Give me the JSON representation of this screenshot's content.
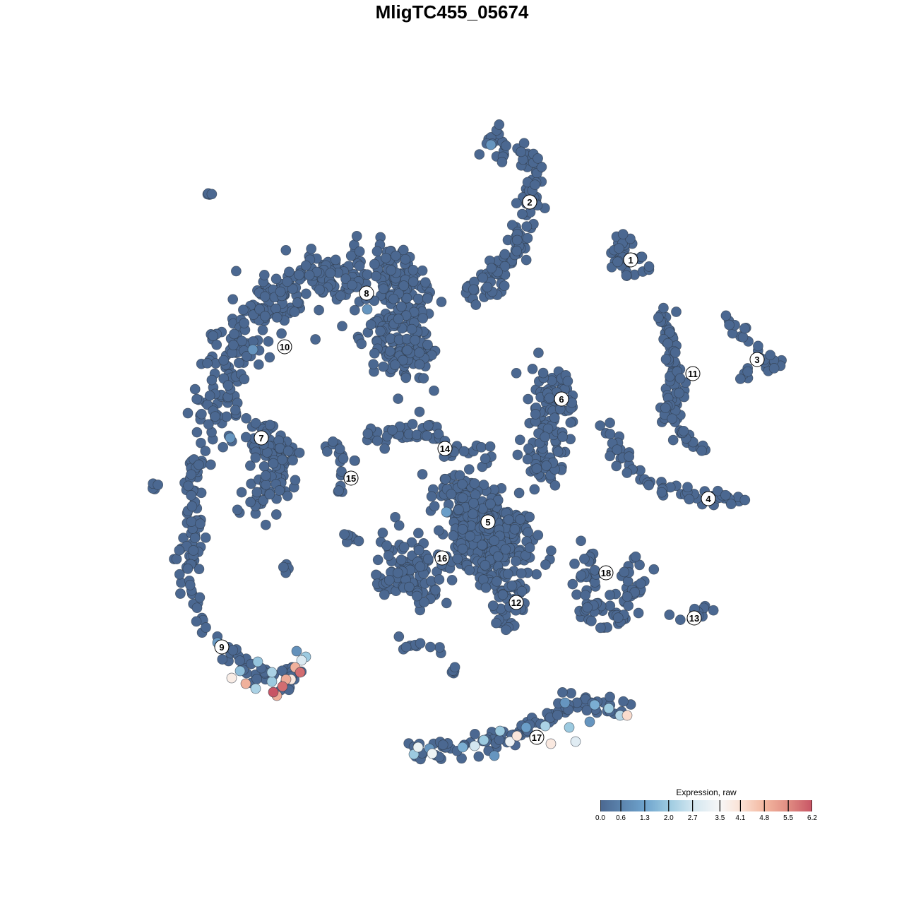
{
  "chart_data": {
    "type": "scatter",
    "title": "MligTC455_05674",
    "xlabel": "",
    "ylabel": "",
    "xlim": [
      -64,
      64
    ],
    "ylim": [
      -64,
      64
    ],
    "axes_visible": false,
    "grid": false,
    "legend": {
      "title": "Expression, raw",
      "placement": "bottom-right",
      "type": "colorbar",
      "ticks": [
        "0.0",
        "0.6",
        "1.3",
        "2.0",
        "2.7",
        "3.5",
        "4.1",
        "4.8",
        "5.5",
        "6.2"
      ],
      "range": [
        0,
        6.2
      ],
      "colors": [
        {
          "value": 0.0,
          "color": "#4b6891"
        },
        {
          "value": 1.3,
          "color": "#6ea3cd"
        },
        {
          "value": 2.0,
          "color": "#9ccae0"
        },
        {
          "value": 2.7,
          "color": "#d2e6f0"
        },
        {
          "value": 3.5,
          "color": "#f7f7f7"
        },
        {
          "value": 4.1,
          "color": "#fbe2d5"
        },
        {
          "value": 4.8,
          "color": "#f3b7a0"
        },
        {
          "value": 5.5,
          "color": "#e08c82"
        },
        {
          "value": 6.2,
          "color": "#c85565"
        }
      ]
    },
    "clusters": [
      {
        "label": "1",
        "label_pos": [
          25.3,
          27.2
        ],
        "path": [
          [
            23.5,
            30.5
          ],
          [
            24.5,
            27
          ],
          [
            27,
            26.5
          ]
        ],
        "spread": 1.8,
        "n": 40
      },
      {
        "label": "2",
        "label_pos": [
          11,
          35.4
        ],
        "path": [
          [
            5,
            44.5
          ],
          [
            10,
            42.5
          ],
          [
            12,
            40
          ],
          [
            11,
            35
          ],
          [
            10,
            30
          ],
          [
            7,
            26
          ],
          [
            5,
            23
          ],
          [
            2.5,
            22.5
          ]
        ],
        "spread": 1.6,
        "n": 130
      },
      {
        "label": "3",
        "label_pos": [
          43.2,
          13.1
        ],
        "path": [
          [
            38.8,
            19.3
          ],
          [
            41,
            17
          ],
          [
            43,
            14
          ],
          [
            46.5,
            12.2
          ],
          [
            41,
            10.5
          ]
        ],
        "spread": 0.9,
        "n": 30
      },
      {
        "label": "4",
        "label_pos": [
          36.3,
          -6.6
        ],
        "path": [
          [
            21.8,
            3.5
          ],
          [
            24,
            -1
          ],
          [
            28,
            -4.5
          ],
          [
            34,
            -6
          ],
          [
            41.5,
            -7
          ]
        ],
        "spread": 0.9,
        "n": 60
      },
      {
        "label": "5",
        "label_pos": [
          5.1,
          -9.9
        ],
        "path": [
          [
            0,
            -6
          ],
          [
            5,
            -10
          ],
          [
            8,
            -14
          ],
          [
            2,
            -12
          ]
        ],
        "spread": 4.2,
        "n": 330
      },
      {
        "label": "6",
        "label_pos": [
          15.5,
          7.5
        ],
        "path": [
          [
            12,
            11
          ],
          [
            15,
            8
          ],
          [
            14,
            4
          ],
          [
            13,
            0
          ],
          [
            12,
            -3
          ]
        ],
        "spread": 2.6,
        "n": 130
      },
      {
        "label": "7",
        "label_pos": [
          -27,
          2
        ],
        "path": [
          [
            -27,
            3
          ],
          [
            -25,
            -1
          ],
          [
            -25,
            -5
          ],
          [
            -27,
            -7
          ]
        ],
        "spread": 2.6,
        "n": 110
      },
      {
        "label": "8",
        "label_pos": [
          -12.1,
          22.5
        ],
        "path": [
          [
            -18,
            24
          ],
          [
            -12,
            25
          ],
          [
            -6,
            24
          ],
          [
            -6,
            18
          ],
          [
            -10,
            17
          ],
          [
            -5,
            12
          ]
        ],
        "spread": 3.6,
        "n": 300
      },
      {
        "label": "9",
        "label_pos": [
          -32.6,
          -27.6
        ],
        "path": [
          [
            -36.5,
            -1
          ],
          [
            -37,
            -10
          ],
          [
            -37,
            -20
          ],
          [
            -35,
            -25
          ],
          [
            -31,
            -29
          ],
          [
            -27,
            -32
          ],
          [
            -24,
            -33
          ],
          [
            -21.5,
            -30
          ]
        ],
        "spread": 1.3,
        "n": 120
      },
      {
        "label": "10",
        "label_pos": [
          -23.7,
          14.9
        ],
        "path": [
          [
            -19,
            26
          ],
          [
            -25,
            22
          ],
          [
            -31,
            15
          ],
          [
            -33,
            8
          ],
          [
            -34,
            2
          ]
        ],
        "spread": 2.8,
        "n": 200
      },
      {
        "label": "11",
        "label_pos": [
          34.1,
          11.1
        ],
        "path": [
          [
            29.5,
            20.5
          ],
          [
            31,
            16
          ],
          [
            32,
            10
          ],
          [
            31,
            4
          ],
          [
            35,
            1
          ]
        ],
        "spread": 1.3,
        "n": 90
      },
      {
        "label": "12",
        "label_pos": [
          9.1,
          -21.3
        ],
        "path": [
          [
            7,
            -19
          ],
          [
            9,
            -21.5
          ],
          [
            7,
            -23
          ]
        ],
        "spread": 2.0,
        "n": 50
      },
      {
        "label": "13",
        "label_pos": [
          34.3,
          -23.5
        ],
        "path": [
          [
            31.5,
            -23.8
          ],
          [
            37,
            -22
          ]
        ],
        "spread": 0.7,
        "n": 12
      },
      {
        "label": "14",
        "label_pos": [
          -1,
          0.5
        ],
        "path": [
          [
            -11.5,
            2.5
          ],
          [
            -4,
            3.5
          ],
          [
            0,
            0
          ],
          [
            6,
            -1.5
          ]
        ],
        "spread": 1.5,
        "n": 60
      },
      {
        "label": "15",
        "label_pos": [
          -14.3,
          -3.7
        ],
        "path": [
          [
            -18,
            1.5
          ],
          [
            -14.5,
            -1.5
          ],
          [
            -16.5,
            -7
          ]
        ],
        "spread": 0.8,
        "n": 18
      },
      {
        "label": "16",
        "label_pos": [
          -1.4,
          -15
        ],
        "path": [
          [
            -8,
            -13
          ],
          [
            -4,
            -16
          ],
          [
            -10,
            -18
          ],
          [
            -3,
            -19
          ]
        ],
        "spread": 2.4,
        "n": 110
      },
      {
        "label": "17",
        "label_pos": [
          12,
          -40.4
        ],
        "path": [
          [
            -5.5,
            -42.5
          ],
          [
            1,
            -42
          ],
          [
            8,
            -40.5
          ],
          [
            13,
            -38
          ],
          [
            16,
            -35.5
          ],
          [
            25,
            -37
          ]
        ],
        "spread": 1.3,
        "n": 100
      },
      {
        "label": "18",
        "label_pos": [
          21.8,
          -17.1
        ],
        "path": [
          [
            20,
            -12
          ],
          [
            19,
            -16
          ],
          [
            19,
            -22
          ],
          [
            22,
            -24
          ],
          [
            26,
            -20
          ],
          [
            25,
            -15
          ]
        ],
        "spread": 1.7,
        "n": 80
      }
    ],
    "small_groups": [
      {
        "path": [
          [
            -35,
            36.8
          ],
          [
            -34,
            36.3
          ]
        ],
        "spread": 0.5,
        "n": 4
      },
      {
        "path": [
          [
            -42.5,
            -5.3
          ],
          [
            -41.5,
            -4.6
          ]
        ],
        "spread": 0.4,
        "n": 4
      },
      {
        "path": [
          [
            -23.5,
            -16.5
          ],
          [
            -22.8,
            -16.8
          ]
        ],
        "spread": 0.6,
        "n": 5
      },
      {
        "path": [
          [
            0,
            -31
          ],
          [
            1,
            -30.5
          ]
        ],
        "spread": 0.6,
        "n": 5
      },
      {
        "path": [
          [
            -15.5,
            -12
          ],
          [
            -13,
            -12.3
          ]
        ],
        "spread": 0.6,
        "n": 6
      },
      {
        "path": [
          [
            -8.5,
            -27.3
          ],
          [
            -2,
            -28
          ]
        ],
        "spread": 0.9,
        "n": 10
      }
    ],
    "expressing_cells": [
      [
        -31.2,
        -32.0,
        3.8
      ],
      [
        -29.2,
        -32.8,
        4.9
      ],
      [
        -27.8,
        -33.5,
        2.2
      ],
      [
        -25.5,
        -31.2,
        2.2
      ],
      [
        -25.3,
        -34.0,
        6.2
      ],
      [
        -24.8,
        -34.5,
        5.0
      ],
      [
        -24.0,
        -33.2,
        5.9
      ],
      [
        -23.5,
        -32.2,
        5.0
      ],
      [
        -22.8,
        -32.2,
        3.9
      ],
      [
        -22.2,
        -30.5,
        4.9
      ],
      [
        -21.5,
        -31.2,
        5.9
      ],
      [
        -21.3,
        -29.5,
        2.9
      ],
      [
        -20.7,
        -29.0,
        2.0
      ],
      [
        -22.0,
        -28.2,
        0.9
      ],
      [
        -30.0,
        -31.0,
        1.8
      ],
      [
        -33.2,
        -27.0,
        1.1
      ],
      [
        -27.5,
        -29.7,
        1.9
      ],
      [
        -25.5,
        -32.5,
        2.0
      ],
      [
        -4.8,
        -41.8,
        3.2
      ],
      [
        -2.8,
        -42.7,
        3.3
      ],
      [
        -5.4,
        -42.8,
        2.0
      ],
      [
        -3.2,
        -42.0,
        1.0
      ],
      [
        1.5,
        -41.8,
        1.5
      ],
      [
        3.2,
        -41.6,
        2.7
      ],
      [
        4.5,
        -40.8,
        2.0
      ],
      [
        6.8,
        -39.5,
        2.0
      ],
      [
        8.2,
        -41.0,
        3.3
      ],
      [
        9.2,
        -40.2,
        4.0
      ],
      [
        10.5,
        -39.0,
        1.2
      ],
      [
        13.2,
        -38.8,
        2.2
      ],
      [
        14.0,
        -41.3,
        3.9
      ],
      [
        16.0,
        -35.5,
        1.0
      ],
      [
        16.6,
        -39.0,
        2.0
      ],
      [
        17.5,
        -41.0,
        3.0
      ],
      [
        20.2,
        -35.8,
        1.5
      ],
      [
        22.2,
        -36.3,
        2.0
      ],
      [
        23.8,
        -37.3,
        2.3
      ],
      [
        24.8,
        -37.3,
        4.2
      ],
      [
        19.5,
        -38.2,
        1.0
      ],
      [
        6.0,
        -43.0,
        1.0
      ],
      [
        5.5,
        43.5,
        1.0
      ],
      [
        -12,
        20.2,
        1.0
      ],
      [
        -28.2,
        14.5,
        1.0
      ],
      [
        -31.4,
        2.0,
        1.0
      ],
      [
        -0.8,
        -8.5,
        1.2
      ]
    ]
  }
}
